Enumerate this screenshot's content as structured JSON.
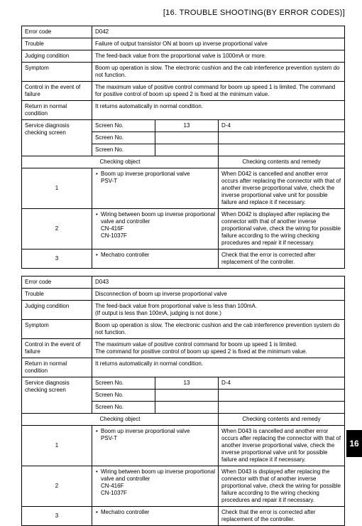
{
  "section_title": "[16.   TROUBLE SHOOTING(BY ERROR CODES)]",
  "page_tab": "16",
  "labels": {
    "error_code": "Error code",
    "trouble": "Trouble",
    "judging": "Judging condition",
    "symptom": "Symptom",
    "control": "Control in the event of failure",
    "return": "Return in normal condition",
    "service": "Service diagnosis checking screen",
    "screen_no": "Screen No.",
    "col_obj": "Checking object",
    "col_rem": "Checking contents and remedy"
  },
  "tables": [
    {
      "error_code": "D042",
      "trouble": "Failure of output transistor ON at boom up inverse proportional valve",
      "judging": "The feed-back value from the proportional valve is 1000mA or more.",
      "symptom": "Boom up operation is slow. The electronic cushion and the cab interference prevention system do not function.",
      "control": "The maximum value of positive control command for boom up speed 1 is limited. The command for positive control of boom up speed 2 is fixed at the minimum value.",
      "return": "It returns automatically in normal condition.",
      "screens": [
        {
          "no": "13",
          "loc": "D-4"
        },
        {
          "no": "",
          "loc": ""
        },
        {
          "no": "",
          "loc": ""
        }
      ],
      "checks": [
        {
          "n": "1",
          "obj_lines": [
            "Boom up inverse proportional valve",
            "PSV-T"
          ],
          "rem": "When D042 is cancelled and another error occurs after replacing the connector with that of another inverse proportional valve, check the inverse proportional valve unit for possible failure and replace it if necessary."
        },
        {
          "n": "2",
          "obj_lines": [
            "Wiring between boom up inverse proportional valve and controller",
            "CN-416F",
            "CN-1037F"
          ],
          "rem": "When D042 is displayed after replacing the connector with that of another inverse proportional valve, check the wiring for possible failure according to the wiring checking procedures and repair it if necessary."
        },
        {
          "n": "3",
          "obj_lines": [
            "Mechatro controller"
          ],
          "rem": "Check that the error is corrected after replacement of the controller."
        }
      ]
    },
    {
      "error_code": "D043",
      "trouble": "Disconnection of boom up inverse proportional valve",
      "judging": "The feed-back value from proportional valve is less than 100mA.\n(If output is less than 100mA, judging is not done.)",
      "symptom": "Boom up operation is slow. The electronic cushion and the cab interference prevention system do not function.",
      "control": "The maximum value of positive control command for boom up speed 1 is limited.\nThe command for positive control of boom up speed 2 is fixed at the minimum value.",
      "return": "It returns automatically in normal condition.",
      "screens": [
        {
          "no": "13",
          "loc": "D-4"
        },
        {
          "no": "",
          "loc": ""
        },
        {
          "no": "",
          "loc": ""
        }
      ],
      "checks": [
        {
          "n": "1",
          "obj_lines": [
            "Boom up inverse proportional valve",
            "PSV-T"
          ],
          "rem": "When D043 is cancelled and another error occurs after replacing the connector with that of another inverse proportional valve, check the inverse proportional valve unit for possible failure and replace it if necessary."
        },
        {
          "n": "2",
          "obj_lines": [
            "Wiring between boom up inverse proportional valve and controller",
            "CN-416F",
            "CN-1037F"
          ],
          "rem": "When D043 is displayed after replacing the connector with that of another inverse proportional valve, check the wiring for possible failure according to the wiring checking procedures and repair it if necessary."
        },
        {
          "n": "3",
          "obj_lines": [
            "Mechatro controller"
          ],
          "rem": "Check that the error is corrected after replacement of the controller."
        }
      ]
    }
  ]
}
